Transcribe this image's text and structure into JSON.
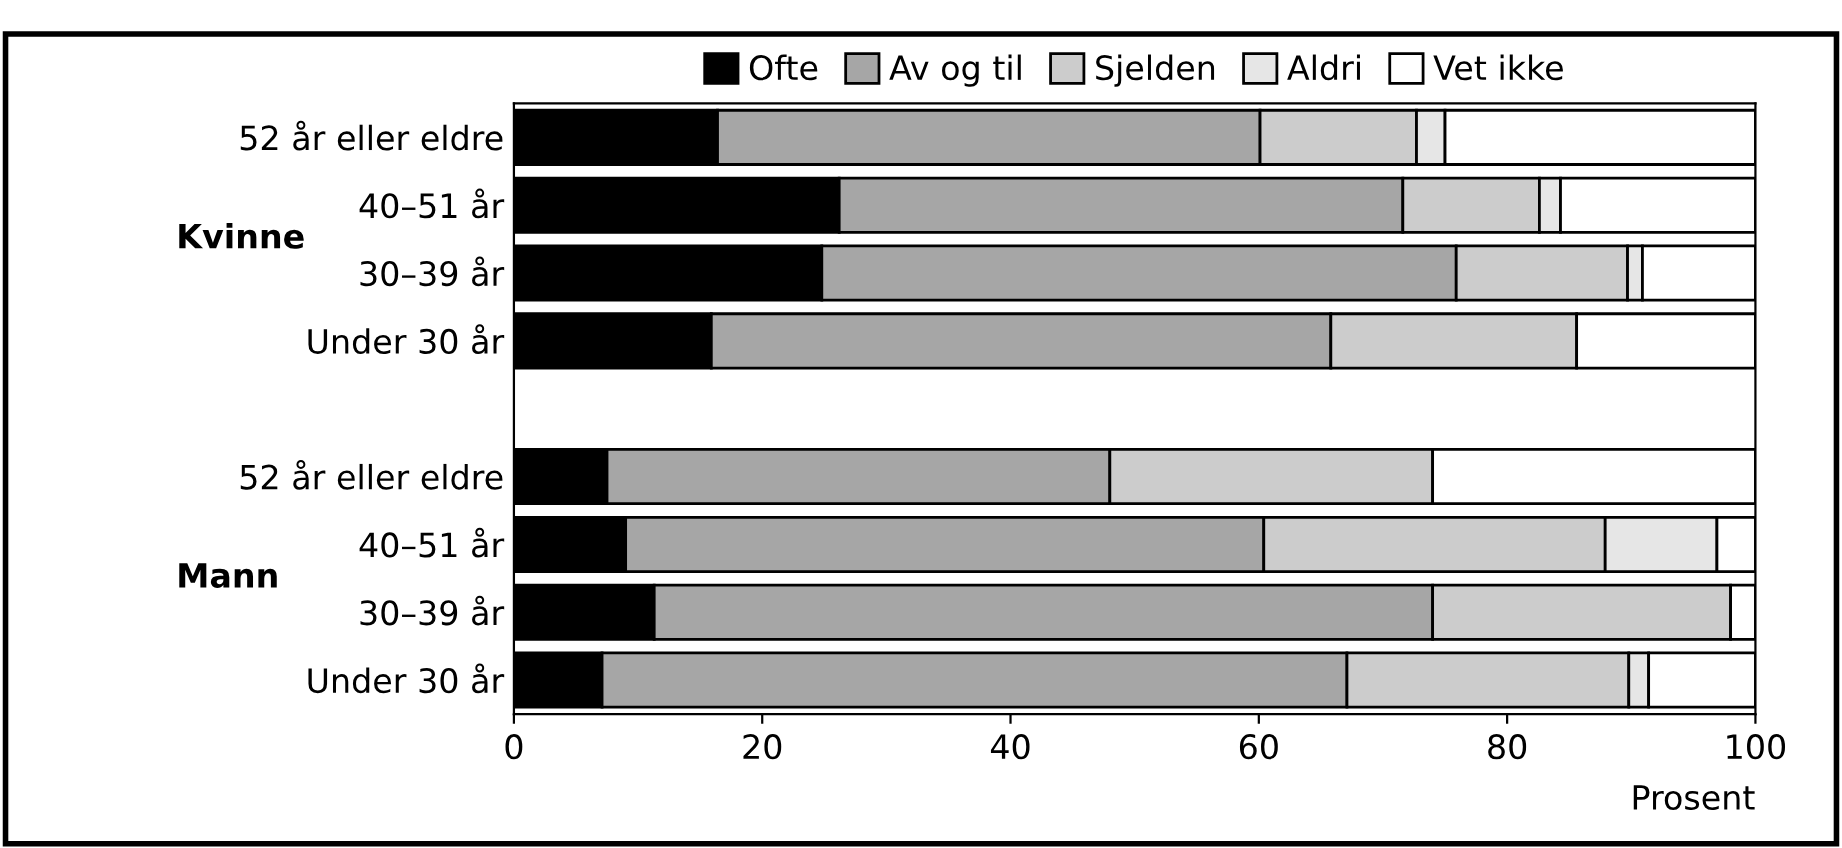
{
  "chart_data": {
    "type": "bar",
    "orientation": "horizontal",
    "stacked": true,
    "categories": [
      "52 år eller eldre",
      "40–51 år",
      "30–39 år",
      "Under 30 år",
      null,
      "52 år eller eldre",
      "40–51 år",
      "30–39 år",
      "Under 30 år"
    ],
    "series": [
      {
        "name": "Ofte",
        "color": "#000000",
        "values": [
          16.4,
          26.2,
          24.8,
          15.9,
          null,
          7.5,
          9.0,
          11.3,
          7.1
        ]
      },
      {
        "name": "Av og til",
        "color": "#a6a6a6",
        "values": [
          43.7,
          45.4,
          51.1,
          49.9,
          null,
          40.5,
          51.4,
          62.7,
          60.0
        ]
      },
      {
        "name": "Sjelden",
        "color": "#cccccc",
        "values": [
          12.6,
          11.0,
          13.8,
          19.8,
          null,
          26.0,
          27.5,
          24.0,
          22.7
        ]
      },
      {
        "name": "Aldri",
        "color": "#e6e6e6",
        "values": [
          2.3,
          1.7,
          1.2,
          null,
          null,
          null,
          9.0,
          null,
          1.6
        ]
      },
      {
        "name": "Vet ikke",
        "color": "#ffffff",
        "values": [
          25.0,
          15.7,
          9.1,
          14.4,
          null,
          26.0,
          3.1,
          2.0,
          8.6
        ]
      }
    ],
    "xlim": [
      0,
      100
    ],
    "xticks": [
      0,
      20,
      40,
      60,
      80,
      100
    ],
    "xlabel": "Prosent",
    "annotations": [
      "Kvinne",
      "Mann"
    ],
    "legend": "top",
    "grid": false
  }
}
